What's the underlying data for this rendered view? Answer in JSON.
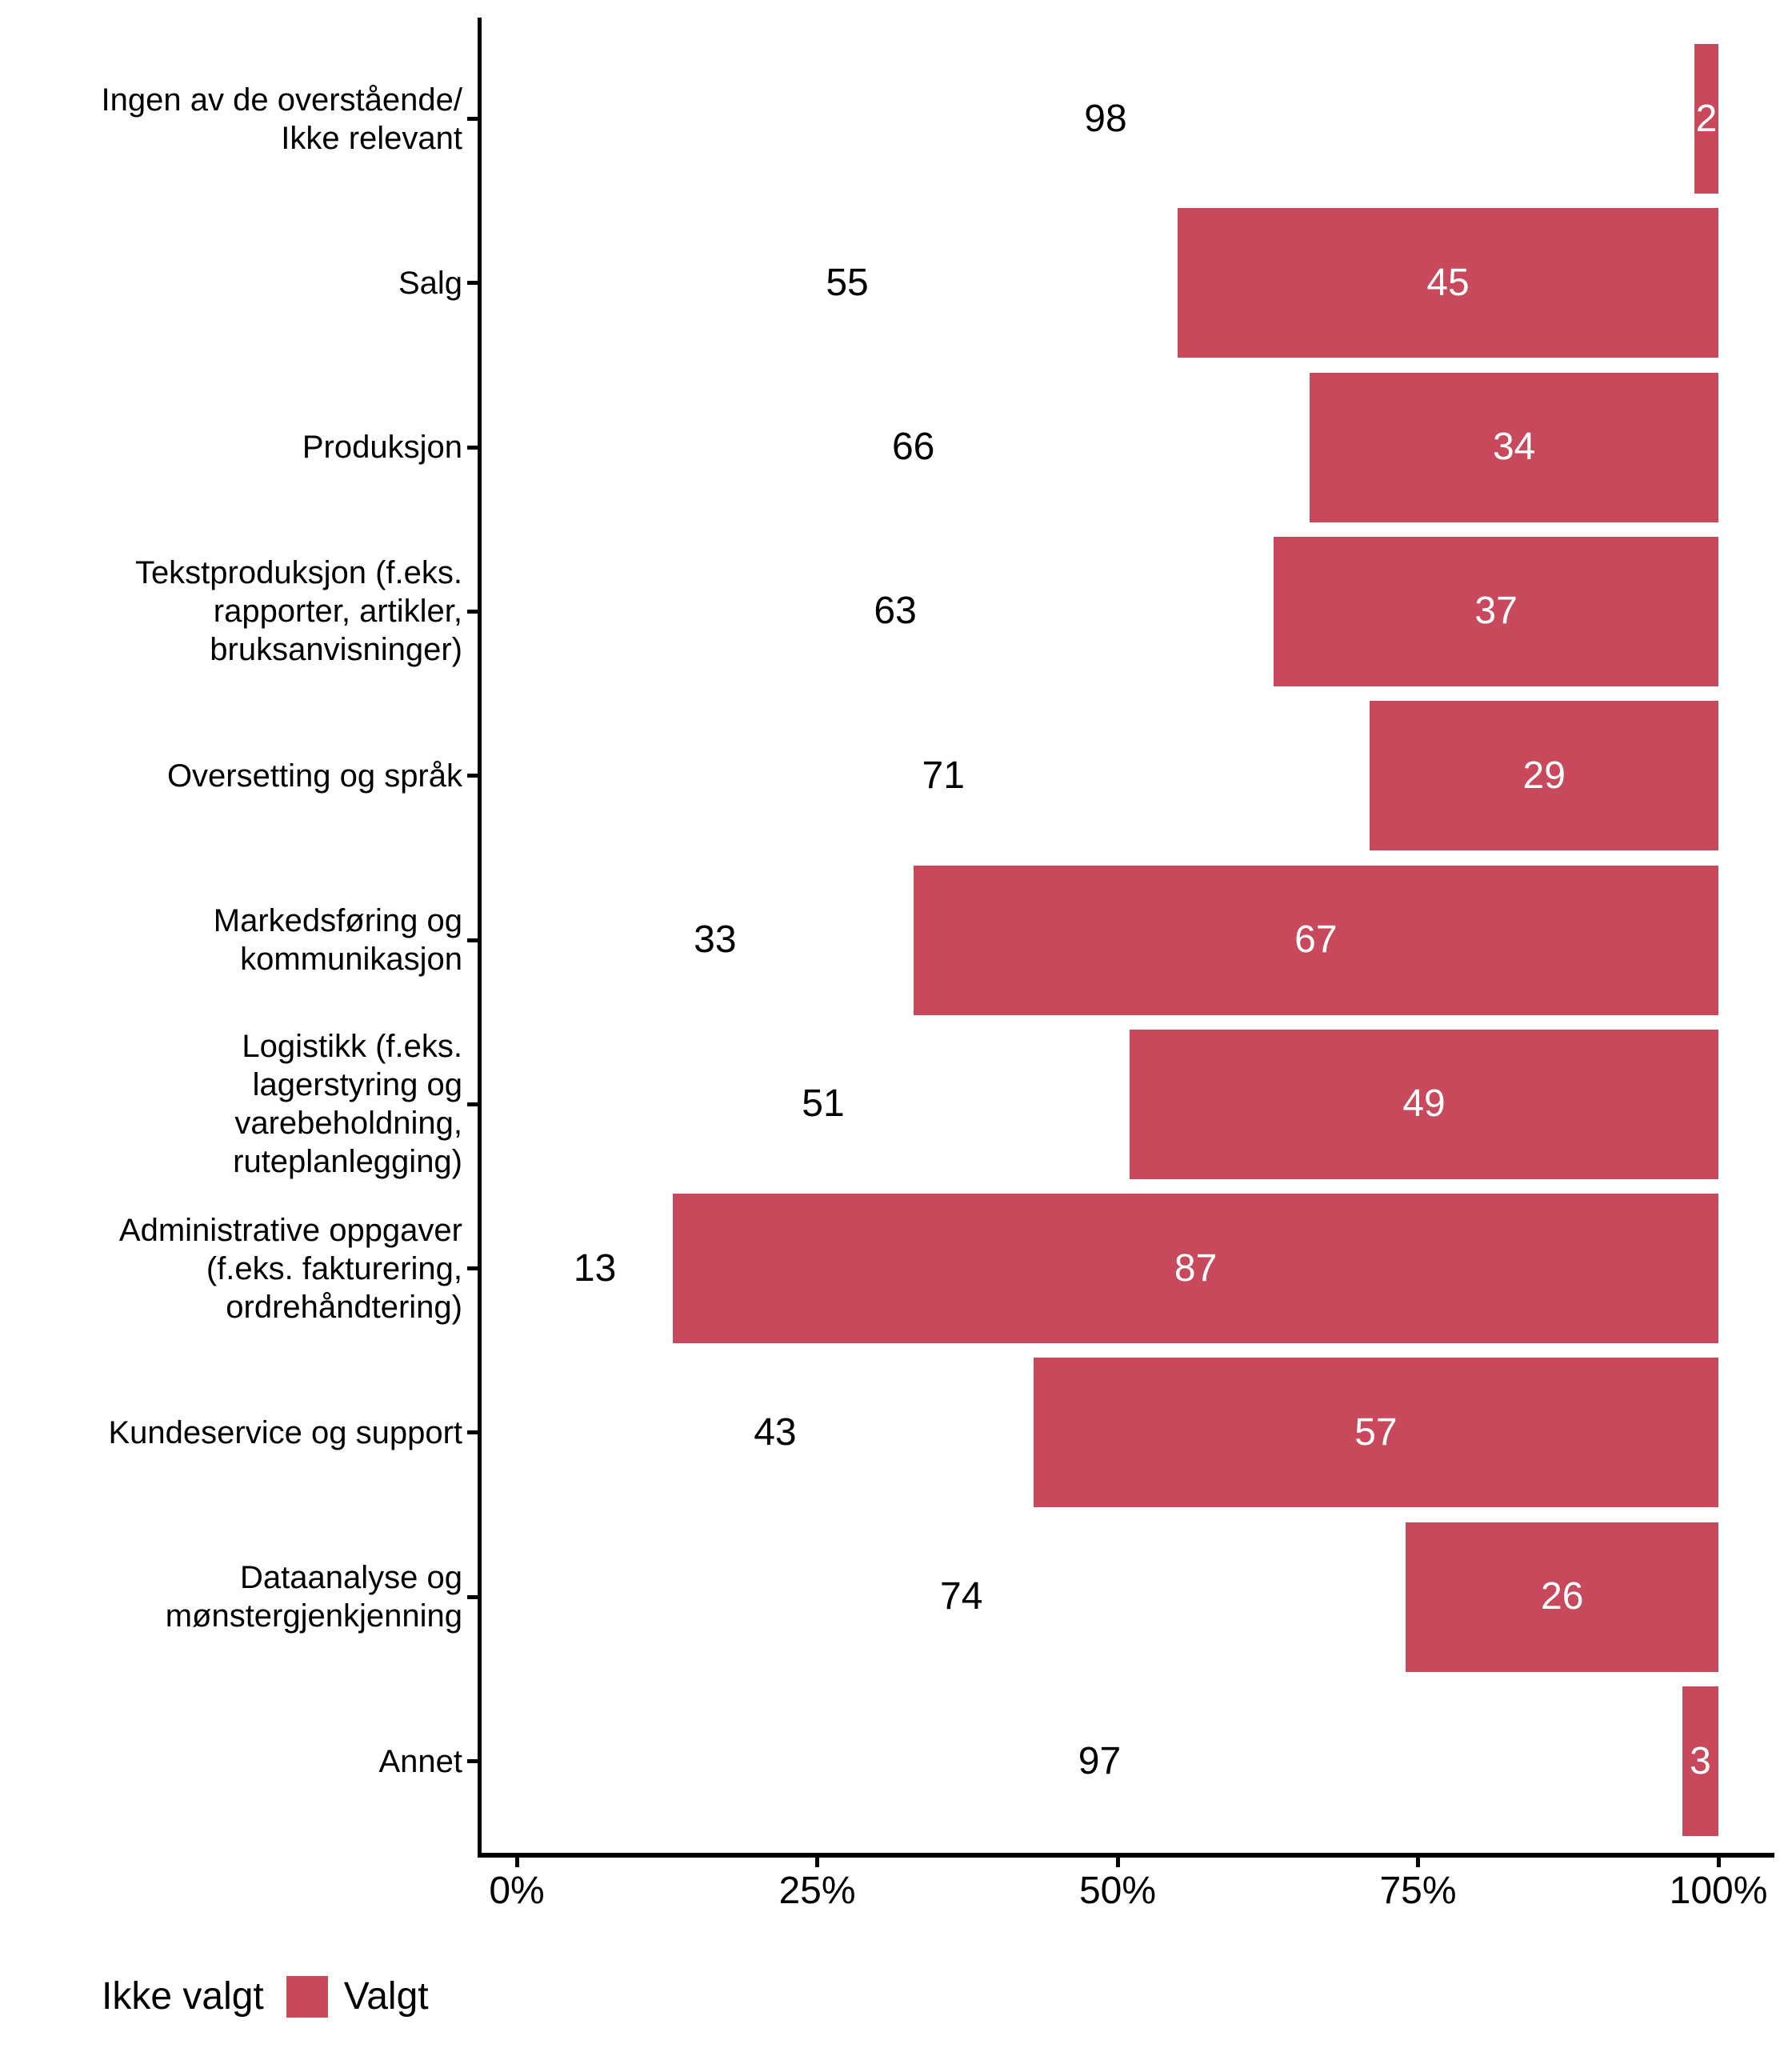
{
  "chart_data": {
    "type": "bar",
    "orientation": "horizontal",
    "stacked": true,
    "title": "",
    "xlabel": "",
    "ylabel": "",
    "grid": false,
    "x_axis": {
      "range": [
        0,
        100
      ],
      "tick_values": [
        0,
        25,
        50,
        75,
        100
      ],
      "tick_labels": [
        "0%",
        "25%",
        "50%",
        "75%",
        "100%"
      ]
    },
    "categories": [
      {
        "label": "Ingen av de overstående/\nIkke relevant"
      },
      {
        "label": "Salg"
      },
      {
        "label": "Produksjon"
      },
      {
        "label": "Tekstproduksjon (f.eks.\nrapporter, artikler,\nbruksanvisninger)"
      },
      {
        "label": "Oversetting og språk"
      },
      {
        "label": "Markedsføring og\nkommunikasjon"
      },
      {
        "label": "Logistikk (f.eks.\nlagerstyring og\nvarebeholdning,\nruteplanlegging)"
      },
      {
        "label": "Administrative oppgaver\n(f.eks. fakturering,\nordrehåndtering)"
      },
      {
        "label": "Kundeservice og support"
      },
      {
        "label": "Dataanalyse og\nmønstergjenkjenning"
      },
      {
        "label": "Annet"
      }
    ],
    "series": [
      {
        "name": "Ikke valgt",
        "color": "#FFFFFF",
        "label_color": "#000000",
        "values": [
          98,
          55,
          66,
          63,
          71,
          33,
          51,
          13,
          43,
          74,
          97
        ]
      },
      {
        "name": "Valgt",
        "color": "#C7495B",
        "label_color": "#FFFFFF",
        "values": [
          2,
          45,
          34,
          37,
          29,
          67,
          49,
          87,
          57,
          26,
          3
        ]
      }
    ],
    "legend": {
      "position": "bottom-left",
      "entries": [
        {
          "label": "Ikke valgt",
          "swatch": "#FFFFFF"
        },
        {
          "label": "Valgt",
          "swatch": "#C7495B"
        }
      ]
    }
  },
  "colors": {
    "bar": "#C7495B",
    "axis": "#000000",
    "text": "#000000",
    "background": "#FFFFFF"
  }
}
